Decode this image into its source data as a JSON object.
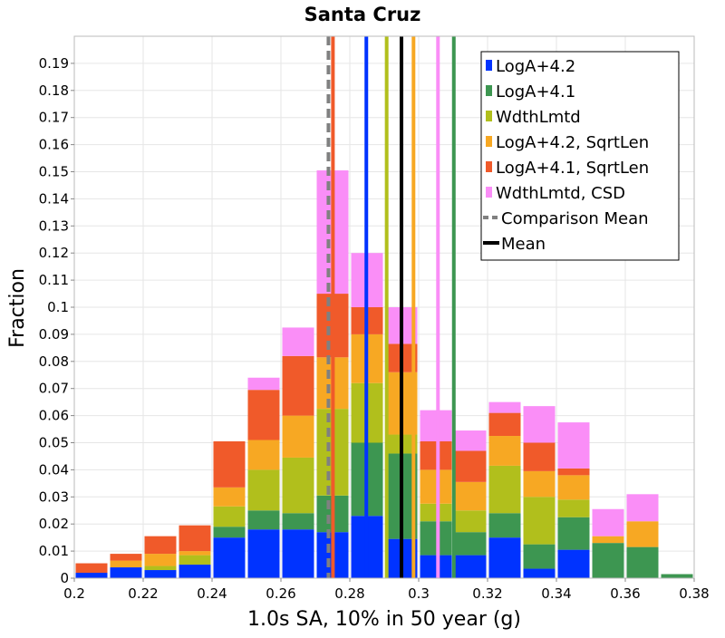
{
  "chart_data": {
    "type": "bar",
    "stacked": true,
    "title": "Santa Cruz",
    "xlabel": "1.0s SA, 10% in 50 year (g)",
    "ylabel": "Fraction",
    "xlim": [
      0.2,
      0.38
    ],
    "ylim": [
      0,
      0.2
    ],
    "grid": true,
    "legend_position": "top-right",
    "x_ticks": [
      "0.2",
      "0.22",
      "0.24",
      "0.26",
      "0.28",
      "0.3",
      "0.32",
      "0.34",
      "0.36",
      "0.38"
    ],
    "y_ticks": [
      "0",
      "0.01",
      "0.02",
      "0.03",
      "0.04",
      "0.05",
      "0.06",
      "0.07",
      "0.08",
      "0.09",
      "0.1",
      "0.11",
      "0.12",
      "0.13",
      "0.14",
      "0.15",
      "0.16",
      "0.17",
      "0.18",
      "0.19"
    ],
    "bin_width": 0.01,
    "bin_starts": [
      0.2,
      0.21,
      0.22,
      0.23,
      0.24,
      0.25,
      0.26,
      0.27,
      0.28,
      0.29,
      0.3,
      0.31,
      0.32,
      0.33,
      0.34,
      0.35,
      0.36,
      0.37
    ],
    "series": [
      {
        "name": "LogA+4.2",
        "color": "#0033ff",
        "values": [
          0.002,
          0.004,
          0.003,
          0.005,
          0.015,
          0.018,
          0.018,
          0.017,
          0.023,
          0.0145,
          0.0085,
          0.0085,
          0.015,
          0.0035,
          0.0105,
          0,
          0,
          0
        ]
      },
      {
        "name": "LogA+4.1",
        "color": "#3d9651",
        "values": [
          0,
          0,
          0,
          0,
          0.004,
          0.007,
          0.006,
          0.0135,
          0.027,
          0.0315,
          0.0125,
          0.0085,
          0.009,
          0.009,
          0.012,
          0.013,
          0.0115,
          0.0015
        ]
      },
      {
        "name": "WdthLmtd",
        "color": "#b1bf1c",
        "values": [
          0,
          0,
          0.0015,
          0.0035,
          0.0075,
          0.015,
          0.0205,
          0.032,
          0.022,
          0.007,
          0.0065,
          0.008,
          0.0175,
          0.0175,
          0.0065,
          0,
          0,
          0
        ]
      },
      {
        "name": "LogA+4.2, SqrtLen",
        "color": "#f7a823",
        "values": [
          0,
          0.0025,
          0.0045,
          0.0015,
          0.007,
          0.011,
          0.0155,
          0.019,
          0.018,
          0.023,
          0.0125,
          0.0105,
          0.011,
          0.0095,
          0.009,
          0.0025,
          0.0095,
          0
        ]
      },
      {
        "name": "LogA+4.1, SqrtLen",
        "color": "#f05a2a",
        "values": [
          0.0035,
          0.0025,
          0.0065,
          0.0095,
          0.017,
          0.0185,
          0.022,
          0.0235,
          0.01,
          0.0105,
          0.0105,
          0.0115,
          0.0085,
          0.0105,
          0.0025,
          0,
          0,
          0
        ]
      },
      {
        "name": "WdthLmtd, CSD",
        "color": "#fa8ef7",
        "values": [
          0,
          0,
          0,
          0,
          0,
          0.0045,
          0.0105,
          0.0455,
          0.02,
          0.0135,
          0.0115,
          0.0075,
          0.004,
          0.0135,
          0.017,
          0.01,
          0.01,
          0
        ]
      }
    ],
    "vertical_lines": [
      {
        "name": "LogA+4.1, SqrtLen",
        "x": 0.2751,
        "color": "#f05a2a",
        "dashed": false
      },
      {
        "name": "LogA+4.2",
        "x": 0.2848,
        "color": "#0033ff",
        "dashed": false
      },
      {
        "name": "WdthLmtd",
        "x": 0.2907,
        "color": "#b1bf1c",
        "dashed": false
      },
      {
        "name": "LogA+4.2, SqrtLen",
        "x": 0.2985,
        "color": "#f7a823",
        "dashed": false
      },
      {
        "name": "WdthLmtd, CSD",
        "x": 0.3056,
        "color": "#fa8ef7",
        "dashed": false
      },
      {
        "name": "LogA+4.1",
        "x": 0.3102,
        "color": "#3d9651",
        "dashed": false
      },
      {
        "name": "Comparison Mean",
        "x": 0.2738,
        "color": "#808080",
        "dashed": true
      },
      {
        "name": "Mean",
        "x": 0.295,
        "color": "#000000",
        "dashed": false
      }
    ],
    "legend": [
      {
        "label": "LogA+4.2",
        "color": "#0033ff",
        "kind": "box"
      },
      {
        "label": "LogA+4.1",
        "color": "#3d9651",
        "kind": "box"
      },
      {
        "label": "WdthLmtd",
        "color": "#b1bf1c",
        "kind": "box"
      },
      {
        "label": "LogA+4.2, SqrtLen",
        "color": "#f7a823",
        "kind": "box"
      },
      {
        "label": "LogA+4.1, SqrtLen",
        "color": "#f05a2a",
        "kind": "box"
      },
      {
        "label": "WdthLmtd, CSD",
        "color": "#fa8ef7",
        "kind": "box"
      },
      {
        "label": "Comparison Mean",
        "color": "#808080",
        "kind": "dashed"
      },
      {
        "label": "Mean",
        "color": "#000000",
        "kind": "line"
      }
    ]
  }
}
